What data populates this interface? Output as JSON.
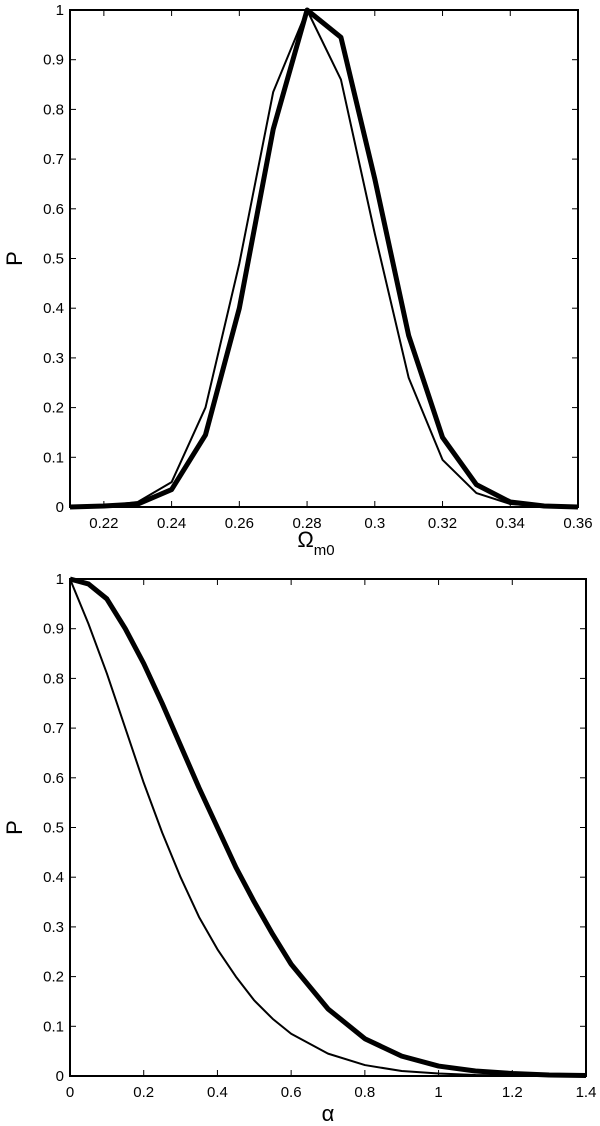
{
  "chart_data": [
    {
      "type": "line",
      "title": "",
      "xlabel": "Ω",
      "xlabel_subscript": "m0",
      "ylabel": "P",
      "xlim": [
        0.21,
        0.36
      ],
      "ylim": [
        0,
        1
      ],
      "xticks": [
        0.22,
        0.24,
        0.26,
        0.28,
        0.3,
        0.32,
        0.34,
        0.36
      ],
      "xtick_labels": [
        "0.22",
        "0.24",
        "0.26",
        "0.28",
        "0.3",
        "0.32",
        "0.34",
        "0.36"
      ],
      "yticks": [
        0,
        0.1,
        0.2,
        0.3,
        0.4,
        0.5,
        0.6,
        0.7,
        0.8,
        0.9,
        1
      ],
      "ytick_labels": [
        "0",
        "0.1",
        "0.2",
        "0.3",
        "0.4",
        "0.5",
        "0.6",
        "0.7",
        "0.8",
        "0.9",
        "1"
      ],
      "grid": false,
      "x": [
        0.21,
        0.22,
        0.23,
        0.24,
        0.25,
        0.26,
        0.27,
        0.28,
        0.29,
        0.3,
        0.31,
        0.32,
        0.33,
        0.34,
        0.35,
        0.36
      ],
      "series": [
        {
          "line_width": "thick",
          "color": "#000000",
          "values": [
            0,
            0.002,
            0.006,
            0.035,
            0.145,
            0.4,
            0.76,
            1.0,
            0.945,
            0.66,
            0.345,
            0.14,
            0.045,
            0.01,
            0.002,
            0
          ]
        },
        {
          "line_width": "thin",
          "color": "#000000",
          "values": [
            0,
            0.002,
            0.01,
            0.05,
            0.2,
            0.49,
            0.835,
            1.0,
            0.86,
            0.55,
            0.26,
            0.095,
            0.028,
            0.006,
            0.001,
            0
          ]
        }
      ]
    },
    {
      "type": "line",
      "title": "",
      "xlabel": "α",
      "ylabel": "P",
      "xlim": [
        0,
        1.4
      ],
      "ylim": [
        0,
        1
      ],
      "xticks": [
        0,
        0.2,
        0.4,
        0.6,
        0.8,
        1,
        1.2,
        1.4
      ],
      "xtick_labels": [
        "0",
        "0.2",
        "0.4",
        "0.6",
        "0.8",
        "1",
        "1.2",
        "1.4"
      ],
      "yticks": [
        0,
        0.1,
        0.2,
        0.3,
        0.4,
        0.5,
        0.6,
        0.7,
        0.8,
        0.9,
        1
      ],
      "ytick_labels": [
        "0",
        "0.1",
        "0.2",
        "0.3",
        "0.4",
        "0.5",
        "0.6",
        "0.7",
        "0.8",
        "0.9",
        "1"
      ],
      "grid": false,
      "x": [
        0,
        0.05,
        0.1,
        0.15,
        0.2,
        0.25,
        0.3,
        0.35,
        0.4,
        0.45,
        0.5,
        0.55,
        0.6,
        0.7,
        0.8,
        0.9,
        1.0,
        1.1,
        1.2,
        1.3,
        1.4
      ],
      "series": [
        {
          "line_width": "thick",
          "color": "#000000",
          "values": [
            1.0,
            0.99,
            0.96,
            0.9,
            0.83,
            0.75,
            0.665,
            0.58,
            0.5,
            0.42,
            0.35,
            0.285,
            0.225,
            0.135,
            0.075,
            0.04,
            0.02,
            0.01,
            0.005,
            0.002,
            0.001
          ]
        },
        {
          "line_width": "thin",
          "color": "#000000",
          "values": [
            1.0,
            0.91,
            0.81,
            0.7,
            0.59,
            0.49,
            0.4,
            0.32,
            0.255,
            0.2,
            0.152,
            0.115,
            0.085,
            0.045,
            0.022,
            0.01,
            0.005,
            0.002,
            0.001,
            0.0005,
            0
          ]
        }
      ]
    }
  ]
}
